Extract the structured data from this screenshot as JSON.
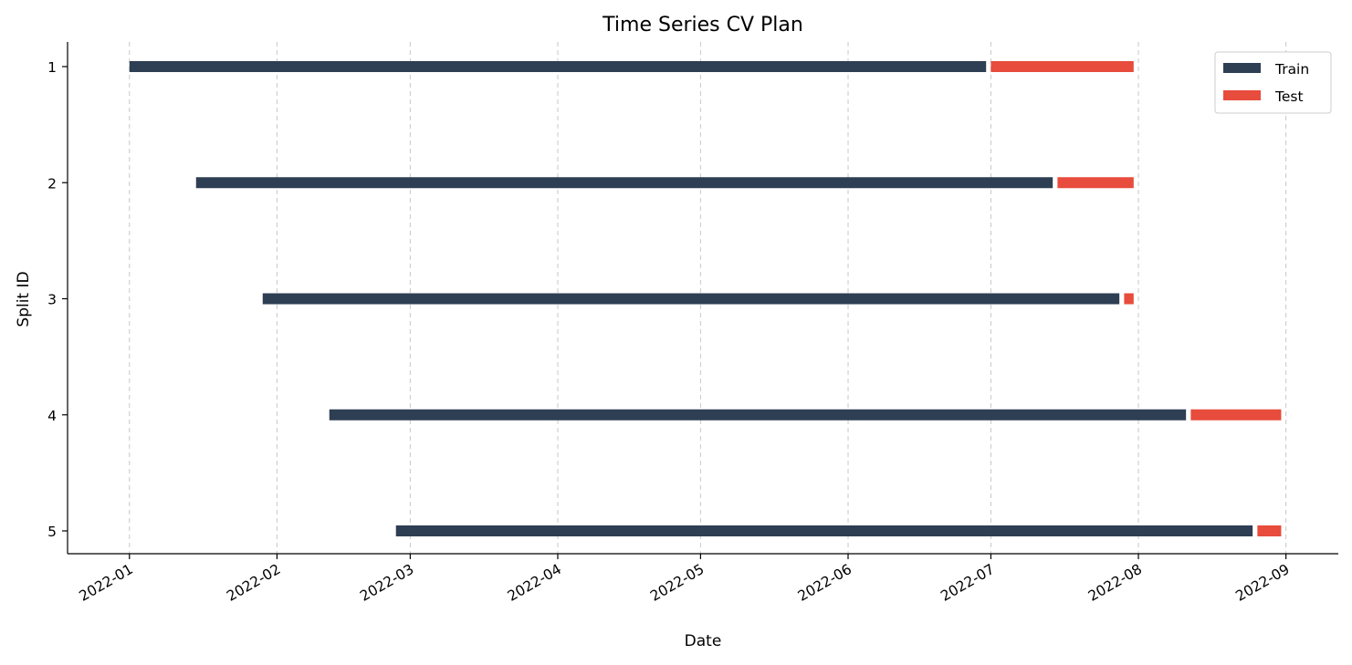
{
  "chart_data": {
    "type": "gantt",
    "title": "Time Series CV Plan",
    "xlabel": "Date",
    "ylabel": "Split ID",
    "x_ticks": [
      "2022-01",
      "2022-02",
      "2022-03",
      "2022-04",
      "2022-05",
      "2022-06",
      "2022-07",
      "2022-08",
      "2022-09"
    ],
    "xlim": [
      "2021-12-19",
      "2022-09-12"
    ],
    "y_ticks": [
      "1",
      "2",
      "3",
      "4",
      "5"
    ],
    "grid": "vertical dashed",
    "legend_position": "top-right",
    "series": [
      {
        "name": "Train",
        "color": "#2e3e53"
      },
      {
        "name": "Test",
        "color": "#e74c3c"
      }
    ],
    "splits": [
      {
        "id": "1",
        "train": [
          "2022-01-01",
          "2022-06-30"
        ],
        "test": [
          "2022-07-01",
          "2022-07-31"
        ]
      },
      {
        "id": "2",
        "train": [
          "2022-01-15",
          "2022-07-14"
        ],
        "test": [
          "2022-07-15",
          "2022-07-31"
        ]
      },
      {
        "id": "3",
        "train": [
          "2022-01-29",
          "2022-07-28"
        ],
        "test": [
          "2022-07-29",
          "2022-07-31"
        ]
      },
      {
        "id": "4",
        "train": [
          "2022-02-12",
          "2022-08-11"
        ],
        "test": [
          "2022-08-12",
          "2022-08-31"
        ]
      },
      {
        "id": "5",
        "train": [
          "2022-02-26",
          "2022-08-25"
        ],
        "test": [
          "2022-08-26",
          "2022-08-31"
        ]
      }
    ]
  }
}
